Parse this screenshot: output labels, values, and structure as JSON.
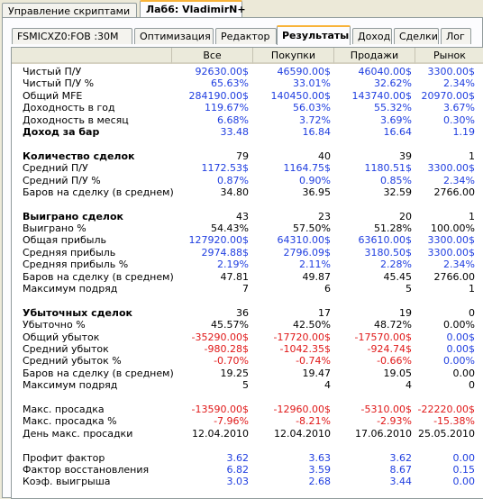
{
  "top_tabs": [
    {
      "label": "Управление скриптами",
      "active": false
    },
    {
      "label": "Лаб6: VladimirN+",
      "active": true
    }
  ],
  "sub_tabs": [
    {
      "label": "FSMICXZ0:FOB :30M",
      "active": false
    },
    {
      "label": "Оптимизация",
      "active": false
    },
    {
      "label": "Редактор",
      "active": false
    },
    {
      "label": "Результаты",
      "active": true
    },
    {
      "label": "Доход",
      "active": false
    },
    {
      "label": "Сделки",
      "active": false
    },
    {
      "label": "Лог",
      "active": false
    }
  ],
  "columns": [
    "",
    "Все",
    "Покупки",
    "Продажи",
    "Рынок"
  ],
  "colors": {
    "blue": "#1f3ee0",
    "red": "#e01818",
    "black": "#000000"
  },
  "rows": [
    {
      "label": "Чистый П/У",
      "bold": false,
      "values": [
        "92630.00$",
        "46590.00$",
        "46040.00$",
        "3300.00$"
      ],
      "color": "blue"
    },
    {
      "label": "Чистый П/У %",
      "bold": false,
      "values": [
        "65.63%",
        "33.01%",
        "32.62%",
        "2.34%"
      ],
      "color": "blue"
    },
    {
      "label": "Общий MFE",
      "bold": false,
      "values": [
        "284190.00$",
        "140450.00$",
        "143740.00$",
        "20970.00$"
      ],
      "color": "blue"
    },
    {
      "label": "Доходность в год",
      "bold": false,
      "values": [
        "119.67%",
        "56.03%",
        "55.32%",
        "3.67%"
      ],
      "color": "blue"
    },
    {
      "label": "Доходность в месяц",
      "bold": false,
      "values": [
        "6.68%",
        "3.72%",
        "3.69%",
        "0.30%"
      ],
      "color": "blue"
    },
    {
      "label": "Доход за бар",
      "bold": true,
      "values": [
        "33.48",
        "16.84",
        "16.64",
        "1.19"
      ],
      "color": "blue"
    },
    {
      "label": "",
      "bold": false,
      "values": [
        "",
        "",
        "",
        ""
      ],
      "color": "black"
    },
    {
      "label": "Количество сделок",
      "bold": true,
      "values": [
        "79",
        "40",
        "39",
        "1"
      ],
      "color": "black"
    },
    {
      "label": "Средний П/У",
      "bold": false,
      "values": [
        "1172.53$",
        "1164.75$",
        "1180.51$",
        "3300.00$"
      ],
      "color": "blue"
    },
    {
      "label": "Средний П/У %",
      "bold": false,
      "values": [
        "0.87%",
        "0.90%",
        "0.85%",
        "2.34%"
      ],
      "color": "blue"
    },
    {
      "label": "Баров на сделку (в среднем)",
      "bold": false,
      "values": [
        "34.80",
        "36.95",
        "32.59",
        "2766.00"
      ],
      "color": "black"
    },
    {
      "label": "",
      "bold": false,
      "values": [
        "",
        "",
        "",
        ""
      ],
      "color": "black"
    },
    {
      "label": "Выиграно сделок",
      "bold": true,
      "values": [
        "43",
        "23",
        "20",
        "1"
      ],
      "color": "black"
    },
    {
      "label": "Выиграно %",
      "bold": false,
      "values": [
        "54.43%",
        "57.50%",
        "51.28%",
        "100.00%"
      ],
      "color": "black"
    },
    {
      "label": "Общая прибыль",
      "bold": false,
      "values": [
        "127920.00$",
        "64310.00$",
        "63610.00$",
        "3300.00$"
      ],
      "color": "blue"
    },
    {
      "label": "Средняя прибыль",
      "bold": false,
      "values": [
        "2974.88$",
        "2796.09$",
        "3180.50$",
        "3300.00$"
      ],
      "color": "blue"
    },
    {
      "label": "Средняя прибыль %",
      "bold": false,
      "values": [
        "2.19%",
        "2.11%",
        "2.28%",
        "2.34%"
      ],
      "color": "blue"
    },
    {
      "label": "Баров на сделку (в среднем)",
      "bold": false,
      "values": [
        "47.81",
        "49.87",
        "45.45",
        "2766.00"
      ],
      "color": "black"
    },
    {
      "label": "Максимум подряд",
      "bold": false,
      "values": [
        "7",
        "6",
        "5",
        "1"
      ],
      "color": "black"
    },
    {
      "label": "",
      "bold": false,
      "values": [
        "",
        "",
        "",
        ""
      ],
      "color": "black"
    },
    {
      "label": "Убыточных сделок",
      "bold": true,
      "values": [
        "36",
        "17",
        "19",
        "0"
      ],
      "color": "black"
    },
    {
      "label": "Убыточно %",
      "bold": false,
      "values": [
        "45.57%",
        "42.50%",
        "48.72%",
        "0.00%"
      ],
      "color": "black"
    },
    {
      "label": "Общий убыток",
      "bold": false,
      "values": [
        "-35290.00$",
        "-17720.00$",
        "-17570.00$",
        "0.00$"
      ],
      "color": "red",
      "last_color": "blue"
    },
    {
      "label": "Средний убыток",
      "bold": false,
      "values": [
        "-980.28$",
        "-1042.35$",
        "-924.74$",
        "0.00$"
      ],
      "color": "red",
      "last_color": "blue"
    },
    {
      "label": "Средний убыток %",
      "bold": false,
      "values": [
        "-0.70%",
        "-0.74%",
        "-0.66%",
        "0.00%"
      ],
      "color": "red",
      "last_color": "blue"
    },
    {
      "label": "Баров на сделку (в среднем)",
      "bold": false,
      "values": [
        "19.25",
        "19.47",
        "19.05",
        "0.00"
      ],
      "color": "black"
    },
    {
      "label": "Максимум подряд",
      "bold": false,
      "values": [
        "5",
        "4",
        "4",
        "0"
      ],
      "color": "black"
    },
    {
      "label": "",
      "bold": false,
      "values": [
        "",
        "",
        "",
        ""
      ],
      "color": "black"
    },
    {
      "label": "Макс. просадка",
      "bold": false,
      "values": [
        "-13590.00$",
        "-12960.00$",
        "-5310.00$",
        "-22220.00$"
      ],
      "color": "red"
    },
    {
      "label": "Макс. просадка %",
      "bold": false,
      "values": [
        "-7.96%",
        "-8.21%",
        "-2.93%",
        "-15.38%"
      ],
      "color": "red"
    },
    {
      "label": "День макс. просадки",
      "bold": false,
      "values": [
        "12.04.2010",
        "12.04.2010",
        "17.06.2010",
        "25.05.2010"
      ],
      "color": "black"
    },
    {
      "label": "",
      "bold": false,
      "values": [
        "",
        "",
        "",
        ""
      ],
      "color": "black"
    },
    {
      "label": "Профит фактор",
      "bold": false,
      "values": [
        "3.62",
        "3.63",
        "3.62",
        "0.00"
      ],
      "color": "blue"
    },
    {
      "label": "Фактор восстановления",
      "bold": false,
      "values": [
        "6.82",
        "3.59",
        "8.67",
        "0.15"
      ],
      "color": "blue"
    },
    {
      "label": "Коэф. выигрыша",
      "bold": false,
      "values": [
        "3.03",
        "2.68",
        "3.44",
        "0.00"
      ],
      "color": "blue"
    }
  ]
}
